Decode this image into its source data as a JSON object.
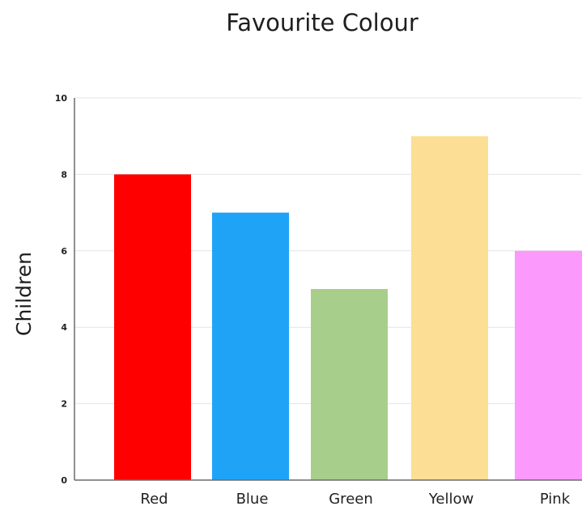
{
  "chart_data": {
    "type": "bar",
    "title": "Favourite Colour",
    "xlabel": "",
    "ylabel": "Children",
    "categories": [
      "Red",
      "Blue",
      "Green",
      "Yellow",
      "Pink"
    ],
    "values": [
      8,
      7,
      5,
      9,
      6
    ],
    "colors": [
      "#ff0000",
      "#1fa3f7",
      "#a8ce8b",
      "#fcdf95",
      "#fc99fc"
    ],
    "ylim": [
      0,
      10
    ],
    "yticks": [
      "0",
      "2",
      "4",
      "6",
      "8",
      "10"
    ],
    "grid": true
  }
}
